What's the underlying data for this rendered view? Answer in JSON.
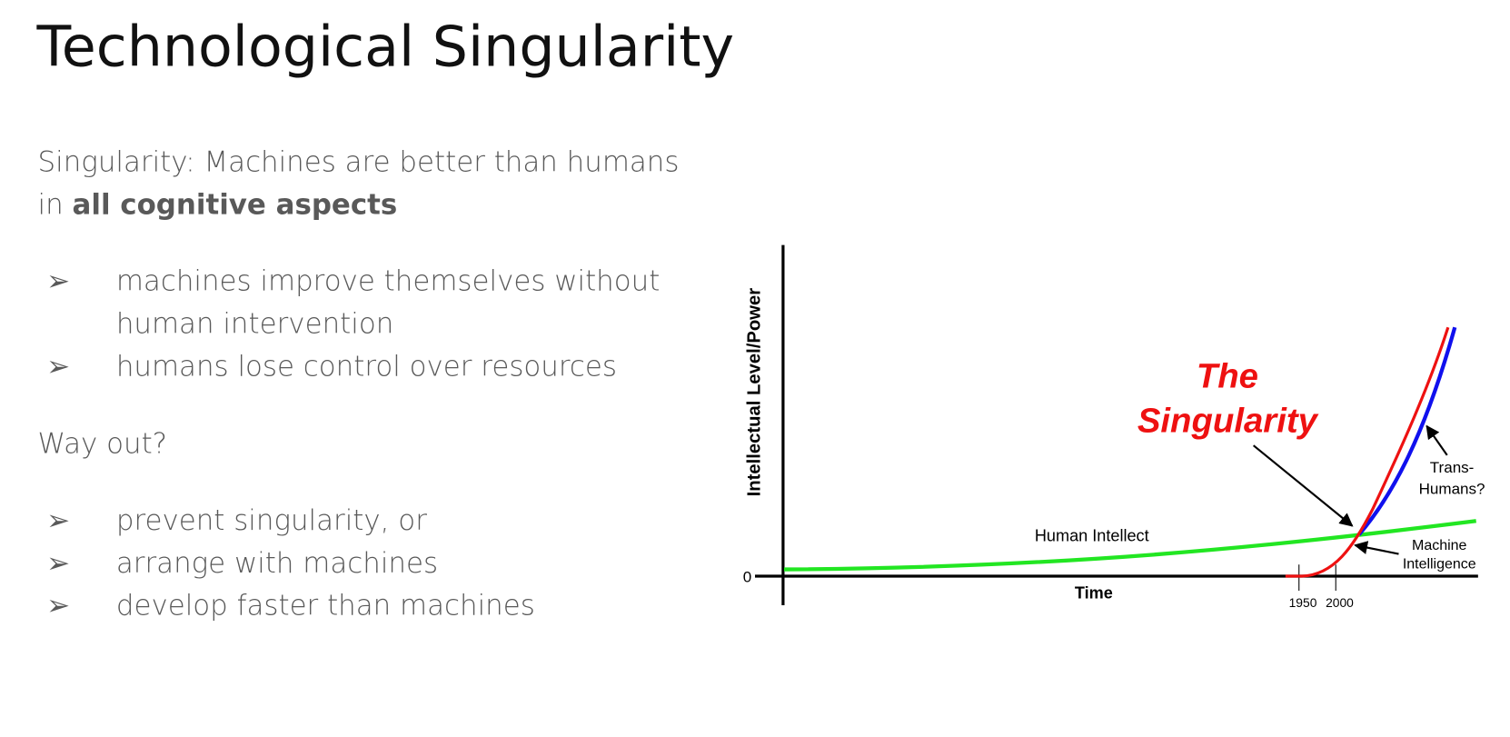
{
  "title": "Technological Singularity",
  "definition": {
    "line1": "Singularity: Machines are better than humans",
    "line2_prefix": "in",
    "line2_bold": "all cognitive aspects"
  },
  "points": [
    {
      "bullet": "➢",
      "lines": [
        "machines improve themselves without",
        "human intervention"
      ]
    },
    {
      "bullet": "➢",
      "lines": [
        "humans lose control over resources"
      ]
    }
  ],
  "question": "Way out?",
  "options": [
    {
      "bullet": "➢",
      "text": "prevent singularity, or"
    },
    {
      "bullet": "➢",
      "text": "arrange with machines"
    },
    {
      "bullet": "➢",
      "text": "develop faster than machines"
    }
  ],
  "diagram": {
    "y_label": "Intellectual Level/Power",
    "x_label": "Time",
    "origin_label": "0",
    "x_tick_labels": [
      "1950",
      "2000"
    ],
    "headline": [
      "The",
      "Singularity"
    ],
    "human_label": "Human Intellect",
    "machine_label": [
      "Machine",
      "Intelligence"
    ],
    "trans_label": [
      "Trans-",
      "Humans?"
    ]
  }
}
